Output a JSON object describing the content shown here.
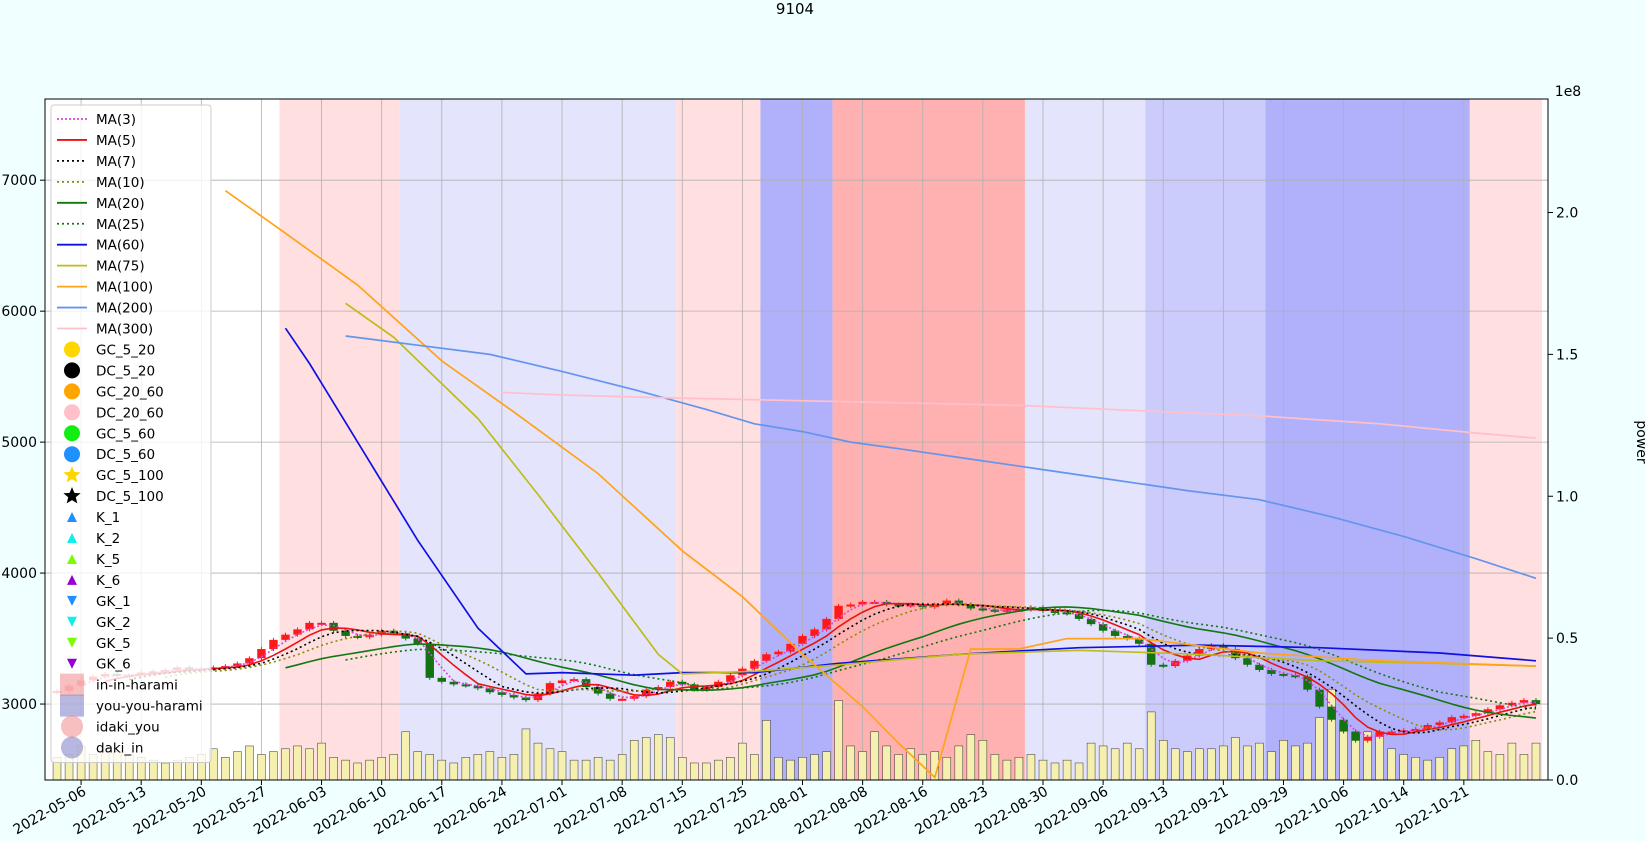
{
  "chart_data": {
    "type": "candlestick",
    "title": "9104",
    "y_right_label": "power",
    "y_right_exponent": "1e8",
    "ylim": [
      2420,
      7620
    ],
    "y_right_lim": [
      0,
      2.4
    ],
    "y_ticks": [
      3000,
      4000,
      5000,
      6000,
      7000
    ],
    "y_right_ticks": [
      0.0,
      0.5,
      1.0,
      1.5,
      2.0
    ],
    "y_right_tick_labels": [
      "0.0",
      "0.5",
      "1.0",
      "1.5",
      "2.0"
    ],
    "x_tick_labels": [
      "2022-05-06",
      "2022-05-13",
      "2022-05-20",
      "2022-05-27",
      "2022-06-03",
      "2022-06-10",
      "2022-06-17",
      "2022-06-24",
      "2022-07-01",
      "2022-07-08",
      "2022-07-15",
      "2022-07-25",
      "2022-08-01",
      "2022-08-08",
      "2022-08-16",
      "2022-08-23",
      "2022-08-30",
      "2022-09-06",
      "2022-09-13",
      "2022-09-21",
      "2022-09-29",
      "2022-10-06",
      "2022-10-14",
      "2022-10-21"
    ],
    "x_tick_index": [
      2,
      7,
      12,
      17,
      22,
      27,
      32,
      37,
      42,
      47,
      52,
      57,
      62,
      67,
      72,
      77,
      82,
      87,
      92,
      97,
      102,
      107,
      112,
      117
    ],
    "n_bars": 124,
    "bands": [
      {
        "from": 19,
        "to": 24,
        "color": "#ffdfdf"
      },
      {
        "from": 24,
        "to": 29,
        "color": "#ffdfdf"
      },
      {
        "from": 29,
        "to": 40,
        "color": "#e4e4fd"
      },
      {
        "from": 40,
        "to": 52,
        "color": "#e4e4fd"
      },
      {
        "from": 52,
        "to": 59,
        "color": "#ffdfdf"
      },
      {
        "from": 59,
        "to": 65,
        "color": "#b1b1fb"
      },
      {
        "from": 65,
        "to": 81,
        "color": "#ffb0b0"
      },
      {
        "from": 81,
        "to": 91,
        "color": "#e4e4fd"
      },
      {
        "from": 91,
        "to": 101,
        "color": "#ccccfc"
      },
      {
        "from": 101,
        "to": 118,
        "color": "#b1b1fb"
      },
      {
        "from": 118,
        "to": 124,
        "color": "#ffdfdf"
      }
    ],
    "close": [
      3100,
      3140,
      3180,
      3210,
      3230,
      3220,
      3220,
      3240,
      3250,
      3260,
      3280,
      3260,
      3270,
      3280,
      3290,
      3310,
      3350,
      3420,
      3490,
      3530,
      3570,
      3620,
      3620,
      3560,
      3520,
      3510,
      3530,
      3560,
      3540,
      3500,
      3460,
      3200,
      3170,
      3150,
      3140,
      3120,
      3090,
      3070,
      3050,
      3030,
      3080,
      3160,
      3180,
      3190,
      3130,
      3080,
      3040,
      3040,
      3060,
      3110,
      3130,
      3170,
      3150,
      3110,
      3130,
      3170,
      3220,
      3270,
      3330,
      3380,
      3400,
      3460,
      3520,
      3570,
      3650,
      3750,
      3760,
      3780,
      3780,
      3760,
      3750,
      3760,
      3740,
      3760,
      3790,
      3760,
      3730,
      3720,
      3710,
      3720,
      3720,
      3740,
      3710,
      3700,
      3690,
      3650,
      3610,
      3560,
      3520,
      3500,
      3460,
      3300,
      3290,
      3330,
      3370,
      3420,
      3450,
      3420,
      3350,
      3300,
      3260,
      3230,
      3220,
      3210,
      3110,
      2980,
      2880,
      2790,
      2720,
      2750,
      2790,
      2790,
      2800,
      2810,
      2840,
      2860,
      2900,
      2910,
      2930,
      2960,
      2990,
      3010,
      3030,
      3000
    ],
    "ma_legend": [
      "MA(3)",
      "MA(5)",
      "MA(7)",
      "MA(10)",
      "MA(20)",
      "MA(25)",
      "MA(60)",
      "MA(75)",
      "MA(100)",
      "MA(200)",
      "MA(300)"
    ],
    "long_ma": [
      {
        "name": "MA(60)",
        "color": "#1010e0",
        "points": [
          [
            19,
            5870
          ],
          [
            21,
            5600
          ],
          [
            25,
            5000
          ],
          [
            30,
            4250
          ],
          [
            35,
            3580
          ],
          [
            39,
            3230
          ],
          [
            42,
            3240
          ],
          [
            48,
            3220
          ],
          [
            52,
            3240
          ],
          [
            58,
            3240
          ],
          [
            65,
            3310
          ],
          [
            75,
            3380
          ],
          [
            85,
            3430
          ],
          [
            95,
            3450
          ],
          [
            105,
            3430
          ],
          [
            115,
            3390
          ],
          [
            123,
            3330
          ]
        ]
      },
      {
        "name": "MA(75)",
        "color": "#bdbd17",
        "points": [
          [
            24,
            6060
          ],
          [
            28,
            5800
          ],
          [
            35,
            5180
          ],
          [
            40,
            4600
          ],
          [
            45,
            4000
          ],
          [
            50,
            3380
          ],
          [
            52,
            3230
          ],
          [
            58,
            3250
          ],
          [
            65,
            3300
          ],
          [
            75,
            3380
          ],
          [
            85,
            3410
          ],
          [
            95,
            3380
          ],
          [
            105,
            3330
          ],
          [
            115,
            3310
          ],
          [
            123,
            3290
          ]
        ]
      },
      {
        "name": "MA(100)",
        "color": "#ffa31a",
        "points": [
          [
            14,
            6920
          ],
          [
            18,
            6660
          ],
          [
            25,
            6200
          ],
          [
            32,
            5620
          ],
          [
            38,
            5230
          ],
          [
            45,
            4760
          ],
          [
            52,
            4170
          ],
          [
            57,
            3820
          ],
          [
            62,
            3380
          ],
          [
            67,
            2980
          ],
          [
            70,
            2700
          ],
          [
            73,
            2440
          ],
          [
            76,
            3420
          ],
          [
            80,
            3420
          ],
          [
            84,
            3500
          ],
          [
            90,
            3500
          ],
          [
            100,
            3390
          ],
          [
            110,
            3330
          ],
          [
            123,
            3290
          ]
        ]
      },
      {
        "name": "MA(200)",
        "color": "#6495ed",
        "points": [
          [
            24,
            5810
          ],
          [
            30,
            5740
          ],
          [
            36,
            5670
          ],
          [
            42,
            5540
          ],
          [
            48,
            5400
          ],
          [
            54,
            5250
          ],
          [
            58,
            5140
          ],
          [
            62,
            5080
          ],
          [
            66,
            5000
          ],
          [
            70,
            4950
          ],
          [
            76,
            4870
          ],
          [
            82,
            4790
          ],
          [
            88,
            4710
          ],
          [
            94,
            4630
          ],
          [
            100,
            4560
          ],
          [
            106,
            4430
          ],
          [
            112,
            4280
          ],
          [
            118,
            4110
          ],
          [
            123,
            3960
          ]
        ]
      },
      {
        "name": "MA(300)",
        "color": "#ffc0cb",
        "points": [
          [
            37,
            5380
          ],
          [
            42,
            5360
          ],
          [
            50,
            5340
          ],
          [
            60,
            5320
          ],
          [
            70,
            5300
          ],
          [
            80,
            5280
          ],
          [
            90,
            5240
          ],
          [
            100,
            5200
          ],
          [
            110,
            5140
          ],
          [
            118,
            5070
          ],
          [
            123,
            5030
          ]
        ]
      }
    ],
    "volume": [
      0.08,
      0.09,
      0.12,
      0.09,
      0.11,
      0.1,
      0.09,
      0.08,
      0.07,
      0.06,
      0.07,
      0.08,
      0.09,
      0.11,
      0.08,
      0.1,
      0.12,
      0.09,
      0.1,
      0.11,
      0.12,
      0.11,
      0.13,
      0.08,
      0.07,
      0.06,
      0.07,
      0.08,
      0.09,
      0.17,
      0.1,
      0.09,
      0.07,
      0.06,
      0.08,
      0.09,
      0.1,
      0.08,
      0.09,
      0.18,
      0.13,
      0.11,
      0.1,
      0.07,
      0.07,
      0.08,
      0.07,
      0.09,
      0.14,
      0.15,
      0.16,
      0.15,
      0.08,
      0.06,
      0.06,
      0.07,
      0.08,
      0.13,
      0.09,
      0.21,
      0.08,
      0.07,
      0.08,
      0.09,
      0.1,
      0.28,
      0.12,
      0.1,
      0.17,
      0.12,
      0.09,
      0.11,
      0.09,
      0.1,
      0.08,
      0.12,
      0.16,
      0.14,
      0.09,
      0.07,
      0.08,
      0.09,
      0.07,
      0.06,
      0.07,
      0.06,
      0.13,
      0.12,
      0.11,
      0.13,
      0.11,
      0.24,
      0.14,
      0.11,
      0.1,
      0.11,
      0.11,
      0.12,
      0.15,
      0.12,
      0.13,
      0.1,
      0.14,
      0.12,
      0.13,
      0.22,
      0.32,
      0.2,
      0.17,
      0.17,
      0.16,
      0.11,
      0.09,
      0.08,
      0.07,
      0.08,
      0.11,
      0.12,
      0.14,
      0.1,
      0.09,
      0.13,
      0.09,
      0.13
    ]
  },
  "legend": {
    "items": [
      {
        "label": "MA(3)",
        "kind": "line",
        "color": "#dd44dd",
        "dash": "2,2"
      },
      {
        "label": "MA(5)",
        "kind": "line",
        "color": "#ee1111",
        "dash": ""
      },
      {
        "label": "MA(7)",
        "kind": "line",
        "color": "#000000",
        "dash": "2,3"
      },
      {
        "label": "MA(10)",
        "kind": "line",
        "color": "#8b8b00",
        "dash": "2,3"
      },
      {
        "label": "MA(20)",
        "kind": "line",
        "color": "#117711",
        "dash": ""
      },
      {
        "label": "MA(25)",
        "kind": "line",
        "color": "#117711",
        "dash": "2,3"
      },
      {
        "label": "MA(60)",
        "kind": "line",
        "color": "#1010e0",
        "dash": ""
      },
      {
        "label": "MA(75)",
        "kind": "line",
        "color": "#bdbd17",
        "dash": ""
      },
      {
        "label": "MA(100)",
        "kind": "line",
        "color": "#ffa31a",
        "dash": ""
      },
      {
        "label": "MA(200)",
        "kind": "line",
        "color": "#6495ed",
        "dash": ""
      },
      {
        "label": "MA(300)",
        "kind": "line",
        "color": "#ffc0cb",
        "dash": ""
      },
      {
        "label": "GC_5_20",
        "kind": "circle",
        "color": "#ffd700"
      },
      {
        "label": "DC_5_20",
        "kind": "circle",
        "color": "#000000"
      },
      {
        "label": "GC_20_60",
        "kind": "circle",
        "color": "#ffa500"
      },
      {
        "label": "DC_20_60",
        "kind": "circle",
        "color": "#ffc0cb"
      },
      {
        "label": "GC_5_60",
        "kind": "circle",
        "color": "#11ee11"
      },
      {
        "label": "DC_5_60",
        "kind": "circle",
        "color": "#1e90ff"
      },
      {
        "label": "GC_5_100",
        "kind": "star",
        "color": "#ffd700"
      },
      {
        "label": "DC_5_100",
        "kind": "star",
        "color": "#000000"
      },
      {
        "label": "K_1",
        "kind": "tri-up",
        "color": "#1e90ff"
      },
      {
        "label": "K_2",
        "kind": "tri-up",
        "color": "#11eeee"
      },
      {
        "label": "K_5",
        "kind": "tri-up",
        "color": "#7cfc00"
      },
      {
        "label": "K_6",
        "kind": "tri-up",
        "color": "#9400d3"
      },
      {
        "label": "GK_1",
        "kind": "tri-down",
        "color": "#1e90ff"
      },
      {
        "label": "GK_2",
        "kind": "tri-down",
        "color": "#11eeee"
      },
      {
        "label": "GK_5",
        "kind": "tri-down",
        "color": "#7cfc00"
      },
      {
        "label": "GK_6",
        "kind": "tri-down",
        "color": "#9400d3"
      },
      {
        "label": "in-in-harami",
        "kind": "square",
        "color": "#f08080"
      },
      {
        "label": "you-you-harami",
        "kind": "square",
        "color": "#7070c0"
      },
      {
        "label": "idaki_you",
        "kind": "bigcircle",
        "color": "#f08080"
      },
      {
        "label": "daki_in",
        "kind": "bigcircle",
        "color": "#7070c0"
      }
    ]
  }
}
